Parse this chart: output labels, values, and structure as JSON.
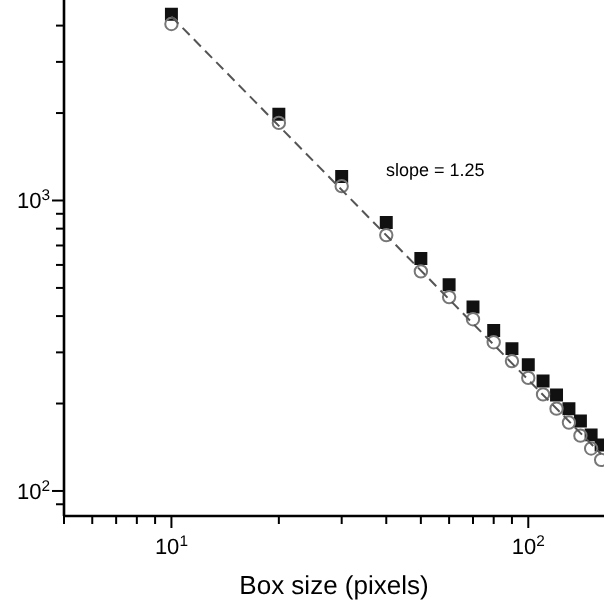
{
  "chart_data": {
    "type": "scatter",
    "xlabel": "Box size (pixels)",
    "log": "xy",
    "xlim": [
      5,
      163
    ],
    "ylim": [
      82,
      4900
    ],
    "xticks": [
      {
        "value": 5,
        "label": null
      },
      {
        "value": 6,
        "label": null
      },
      {
        "value": 7,
        "label": null
      },
      {
        "value": 8,
        "label": null
      },
      {
        "value": 9,
        "label": null
      },
      {
        "value": 10,
        "label": "10$^{1}$"
      },
      {
        "value": 20,
        "label": null
      },
      {
        "value": 30,
        "label": null
      },
      {
        "value": 40,
        "label": null
      },
      {
        "value": 50,
        "label": null
      },
      {
        "value": 60,
        "label": null
      },
      {
        "value": 70,
        "label": null
      },
      {
        "value": 80,
        "label": null
      },
      {
        "value": 90,
        "label": null
      },
      {
        "value": 100,
        "label": "10$^{2}$"
      }
    ],
    "yticks": [
      {
        "value": 90,
        "label": null
      },
      {
        "value": 100,
        "label": "10$^{2}$"
      },
      {
        "value": 200,
        "label": null
      },
      {
        "value": 300,
        "label": null
      },
      {
        "value": 400,
        "label": null
      },
      {
        "value": 500,
        "label": null
      },
      {
        "value": 600,
        "label": null
      },
      {
        "value": 700,
        "label": null
      },
      {
        "value": 800,
        "label": null
      },
      {
        "value": 900,
        "label": null
      },
      {
        "value": 1000,
        "label": "10$^{3}$"
      },
      {
        "value": 2000,
        "label": null
      },
      {
        "value": 3000,
        "label": null
      },
      {
        "value": 4000,
        "label": null
      }
    ],
    "grid": false,
    "annotations": [
      "slope = 1.25"
    ],
    "x": [
      10,
      20,
      30,
      40,
      50,
      60,
      70,
      80,
      90,
      100,
      110,
      120,
      130,
      140,
      150,
      160
    ],
    "series": [
      {
        "color": "#111111",
        "marker": "square",
        "values": [
          4380,
          1980,
          1210,
          840,
          631,
          513,
          430,
          357,
          309,
          272,
          239,
          214,
          192,
          174,
          156,
          144
        ]
      },
      {
        "color": "#777777",
        "marker": "circle",
        "values": [
          4050,
          1850,
          1120,
          760,
          570,
          465,
          390,
          325,
          280,
          245,
          215,
          192,
          172,
          155,
          140,
          128
        ]
      },
      {
        "type": "line",
        "color": "#555555",
        "line_style": "dashed",
        "marker": "none",
        "x": [
          10,
          160
        ],
        "values": [
          4300,
          134
        ]
      }
    ]
  }
}
